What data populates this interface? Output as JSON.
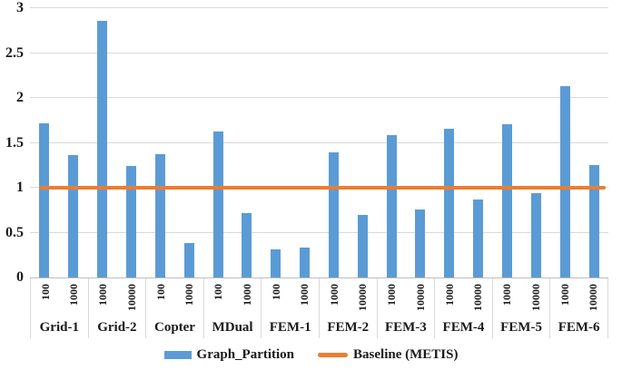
{
  "chart_data": {
    "type": "bar",
    "title": "",
    "xlabel": "",
    "ylabel": "",
    "ylim": [
      0,
      3
    ],
    "y_ticks": [
      "0",
      "0.5",
      "1",
      "1.5",
      "2",
      "2.5",
      "3"
    ],
    "grid": true,
    "baseline_value": 1,
    "groups": [
      {
        "label": "Grid-1",
        "bars": [
          {
            "x": "100",
            "value": 1.72
          },
          {
            "x": "1000",
            "value": 1.36
          }
        ]
      },
      {
        "label": "Grid-2",
        "bars": [
          {
            "x": "1000",
            "value": 2.86
          },
          {
            "x": "10000",
            "value": 1.24
          }
        ]
      },
      {
        "label": "Copter",
        "bars": [
          {
            "x": "100",
            "value": 1.37
          },
          {
            "x": "1000",
            "value": 0.38
          }
        ]
      },
      {
        "label": "MDual",
        "bars": [
          {
            "x": "100",
            "value": 1.63
          },
          {
            "x": "1000",
            "value": 0.72
          }
        ]
      },
      {
        "label": "FEM-1",
        "bars": [
          {
            "x": "100",
            "value": 0.31
          },
          {
            "x": "1000",
            "value": 0.33
          }
        ]
      },
      {
        "label": "FEM-2",
        "bars": [
          {
            "x": "1000",
            "value": 1.39
          },
          {
            "x": "10000",
            "value": 0.7
          }
        ]
      },
      {
        "label": "FEM-3",
        "bars": [
          {
            "x": "1000",
            "value": 1.59
          },
          {
            "x": "10000",
            "value": 0.76
          }
        ]
      },
      {
        "label": "FEM-4",
        "bars": [
          {
            "x": "1000",
            "value": 1.66
          },
          {
            "x": "10000",
            "value": 0.87
          }
        ]
      },
      {
        "label": "FEM-5",
        "bars": [
          {
            "x": "1000",
            "value": 1.71
          },
          {
            "x": "10000",
            "value": 0.94
          }
        ]
      },
      {
        "label": "FEM-6",
        "bars": [
          {
            "x": "1000",
            "value": 2.13
          },
          {
            "x": "10000",
            "value": 1.25
          }
        ]
      }
    ],
    "colors": {
      "bar": "#5b9bd5",
      "baseline": "#ed7d31",
      "gridline": "#d9d9d9",
      "axis": "#bfbfbf",
      "text": "#1a1a1a"
    },
    "legend": {
      "position": "bottom-center",
      "items": [
        {
          "label": "Graph_Partition",
          "swatch": "bar",
          "color": "#5b9bd5"
        },
        {
          "label": "Baseline (METIS)",
          "swatch": "line",
          "color": "#ed7d31"
        }
      ]
    }
  }
}
